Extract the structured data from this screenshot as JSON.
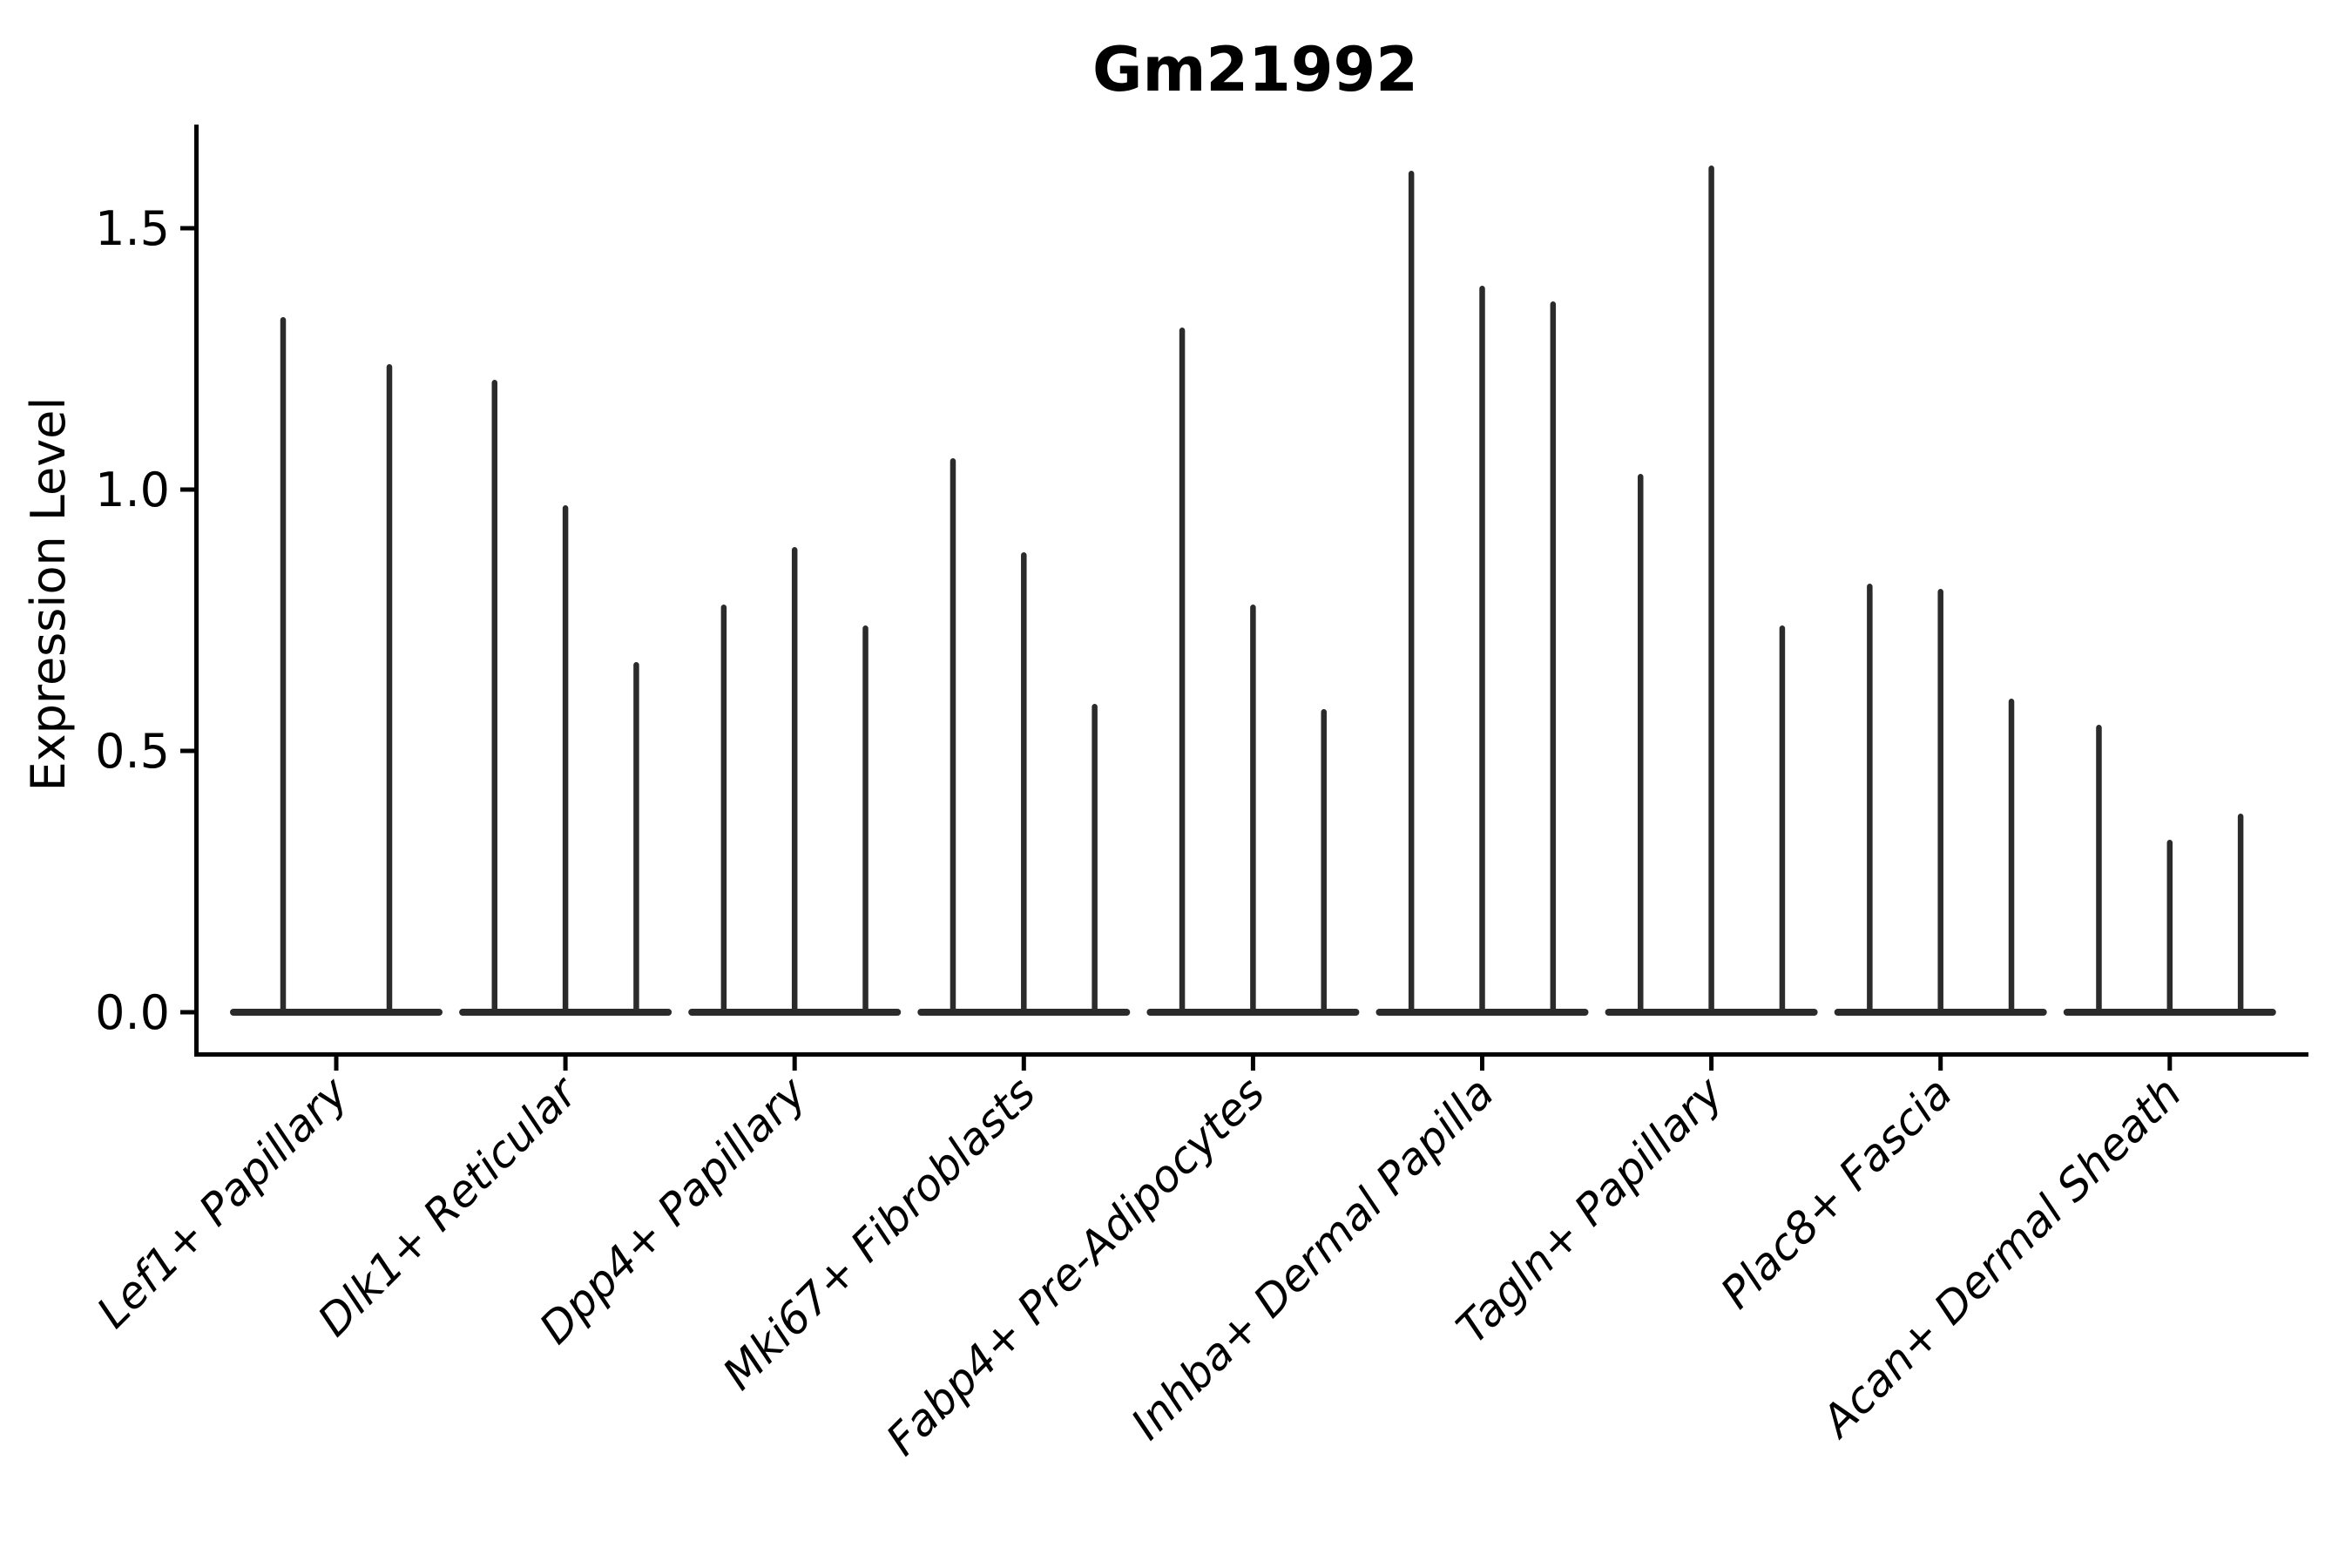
{
  "figure": {
    "background": "#ffffff"
  },
  "chart_data": {
    "type": "violin",
    "title": "Gm21992",
    "xlabel": "",
    "ylabel": "Expression Level",
    "ylim": [
      -0.08,
      1.7
    ],
    "yticks": [
      0.0,
      0.5,
      1.0,
      1.5
    ],
    "ytick_labels": [
      "0.0",
      "0.5",
      "1.0",
      "1.5"
    ],
    "categories": [
      "Lef1+ Papillary",
      "Dlk1+ Reticular",
      "Dpp4+ Papillary",
      "Mki67+ Fibroblasts",
      "Fabp4+ Pre-Adipocytes",
      "Inhba+ Dermal Papilla",
      "Tagln+ Papillary",
      "Plac8+ Fascia",
      "Acan+ Dermal Sheath"
    ],
    "groups": [
      {
        "category": "Lef1+ Papillary",
        "violin_max_values": [
          1.33,
          1.24
        ]
      },
      {
        "category": "Dlk1+ Reticular",
        "violin_max_values": [
          1.21,
          0.97,
          0.67
        ]
      },
      {
        "category": "Dpp4+ Papillary",
        "violin_max_values": [
          0.78,
          0.89,
          0.74
        ]
      },
      {
        "category": "Mki67+ Fibroblasts",
        "violin_max_values": [
          1.06,
          0.88,
          0.59
        ]
      },
      {
        "category": "Fabp4+ Pre-Adipocytes",
        "violin_max_values": [
          1.31,
          0.78,
          0.58
        ]
      },
      {
        "category": "Inhba+ Dermal Papilla",
        "violin_max_values": [
          1.61,
          1.39,
          1.36
        ]
      },
      {
        "category": "Tagln+ Papillary",
        "violin_max_values": [
          1.03,
          1.62,
          0.74
        ]
      },
      {
        "category": "Plac8+ Fascia",
        "violin_max_values": [
          0.82,
          0.81,
          0.6
        ]
      },
      {
        "category": "Acan+ Dermal Sheath",
        "violin_max_values": [
          0.55,
          0.33,
          0.38
        ]
      }
    ],
    "baseline_value": 0.0,
    "grid": false,
    "legend": null,
    "colors": {
      "violin": "#2b2b2b",
      "axis": "#000000",
      "text": "#000000"
    }
  }
}
